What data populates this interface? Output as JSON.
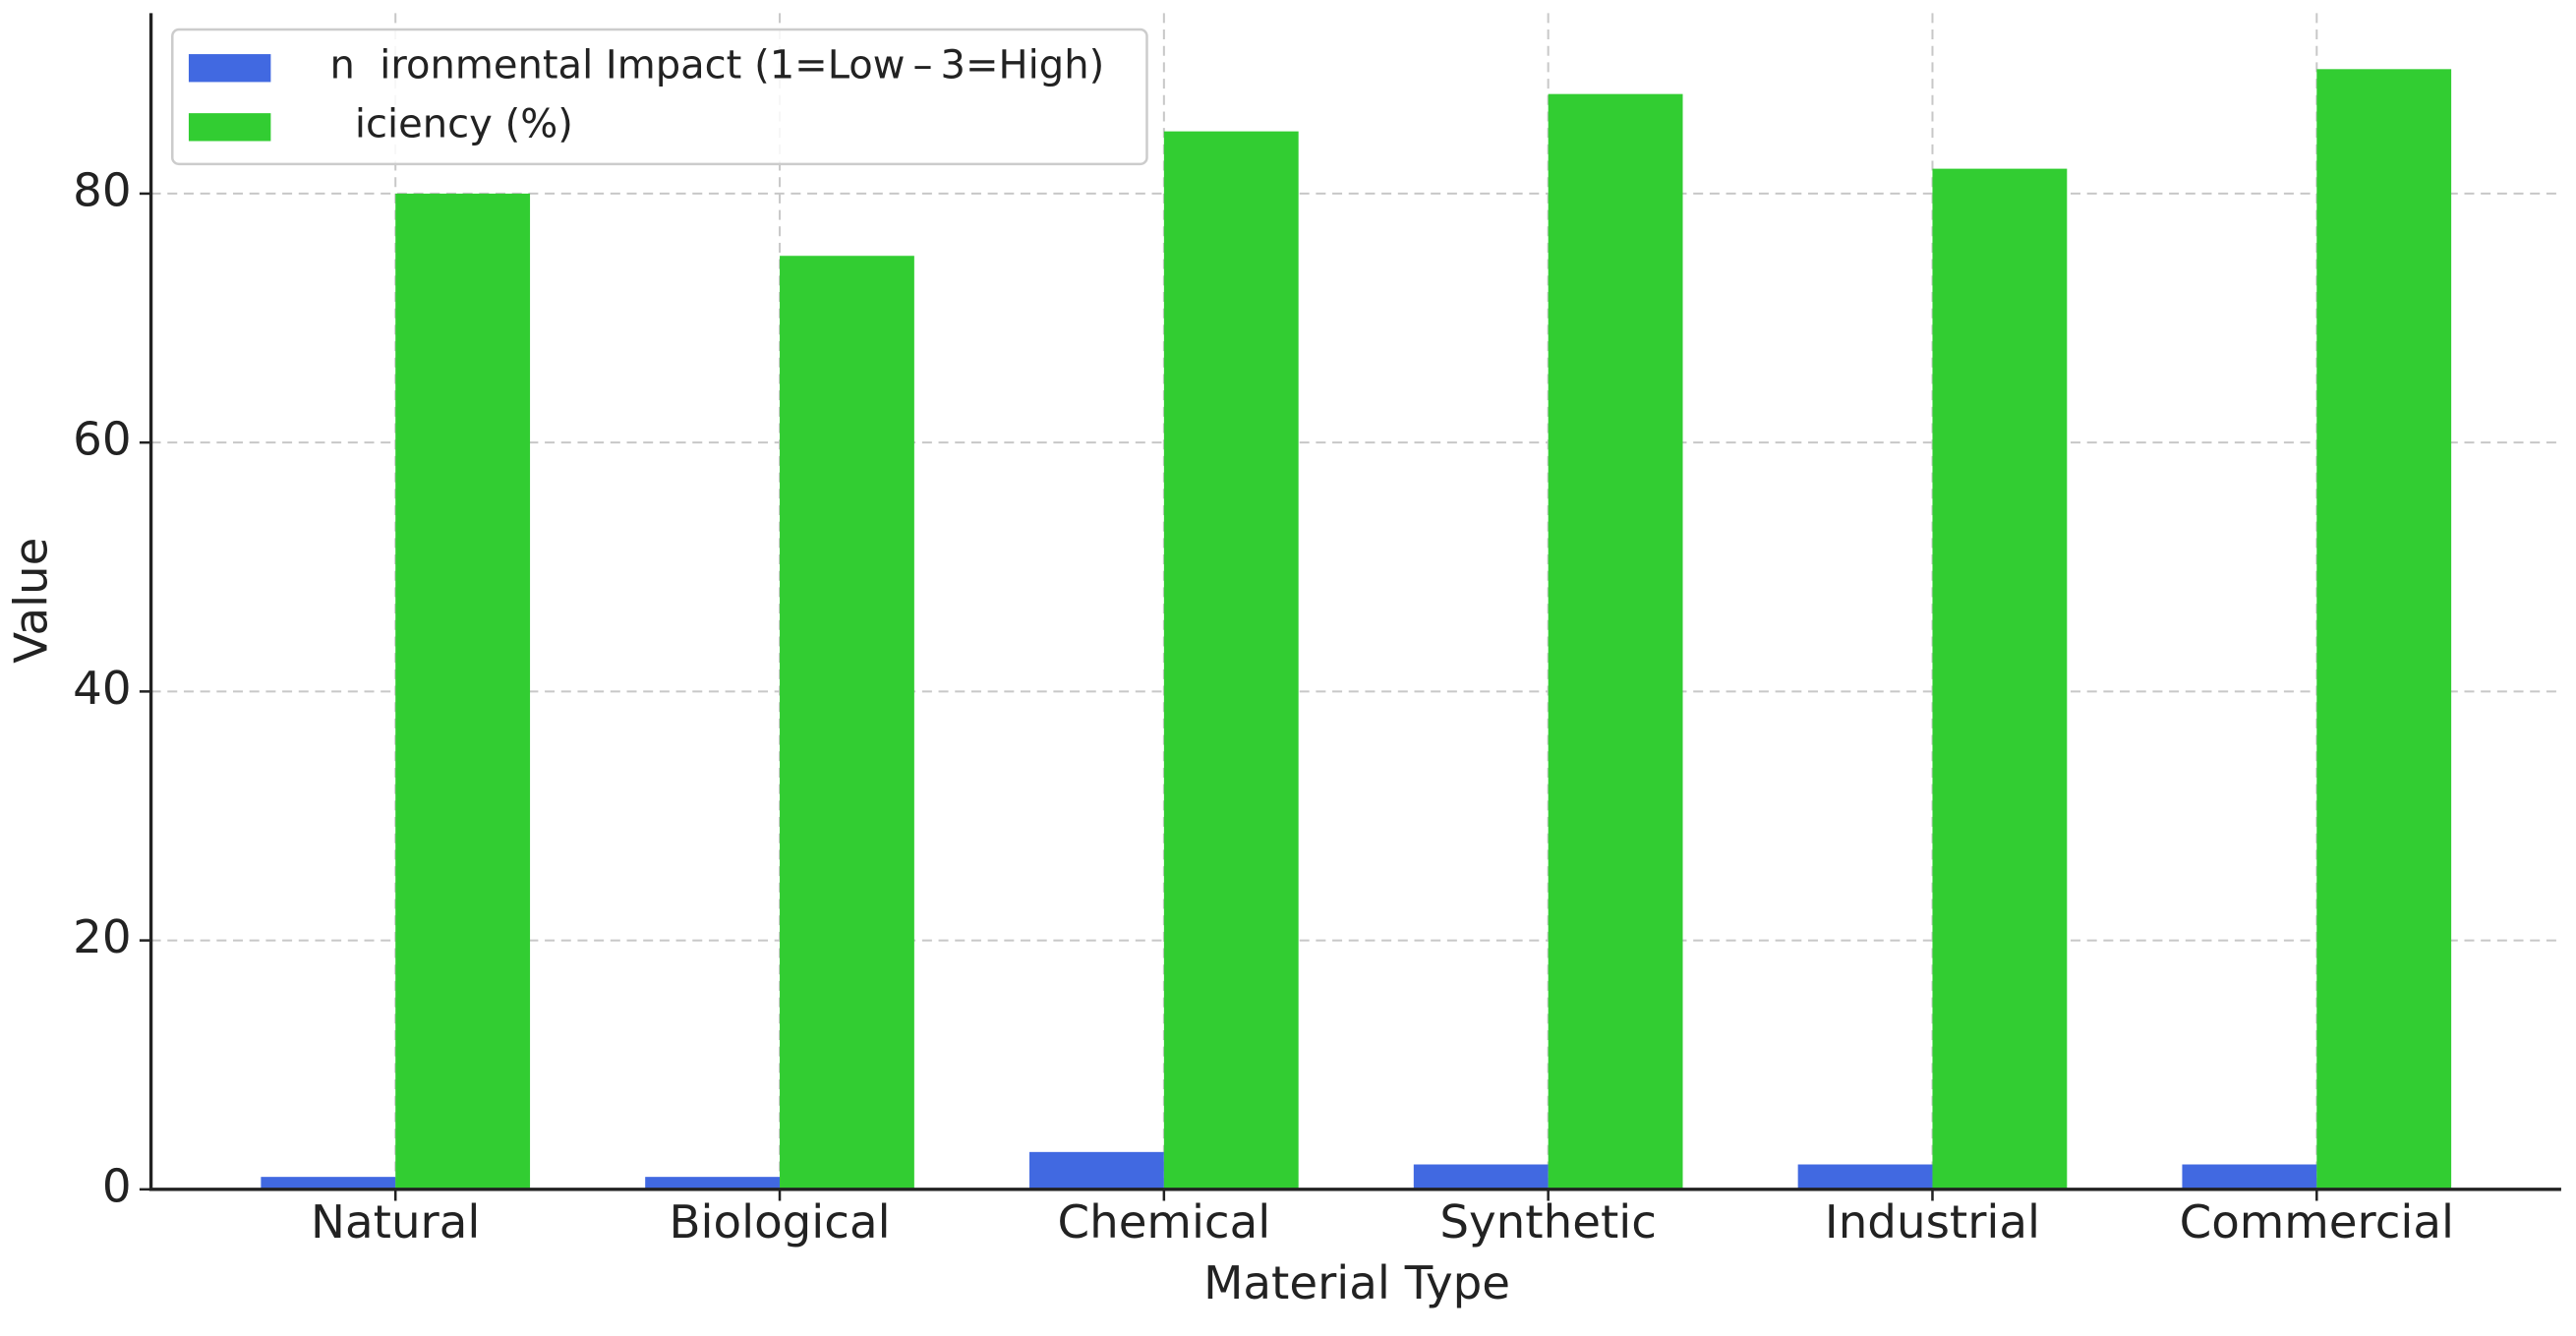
{
  "chart_data": {
    "type": "bar",
    "x_label": "Material Type",
    "y_label": "Value",
    "categories": [
      "Natural",
      "Biological",
      "Chemical",
      "Synthetic",
      "Industrial",
      "Commercial"
    ],
    "series": [
      {
        "name": "n  ironmental Impact (1=Low – 3=High)",
        "color": "#4169e1",
        "values": [
          1,
          1,
          3,
          2,
          2,
          2
        ]
      },
      {
        "name": "  iciency (%)",
        "color": "#32cd32",
        "values": [
          80,
          75,
          85,
          88,
          82,
          90
        ]
      }
    ],
    "ylim": [
      0,
      94.5
    ],
    "yticks": [
      0,
      20,
      40,
      60,
      80
    ],
    "grid": true,
    "legend": "upper left"
  }
}
